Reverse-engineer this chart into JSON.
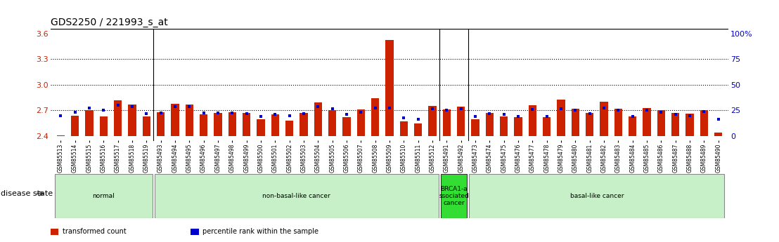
{
  "title": "GDS2250 / 221993_s_at",
  "samples": [
    "GSM85513",
    "GSM85514",
    "GSM85515",
    "GSM85516",
    "GSM85517",
    "GSM85518",
    "GSM85519",
    "GSM85493",
    "GSM85494",
    "GSM85495",
    "GSM85496",
    "GSM85497",
    "GSM85498",
    "GSM85499",
    "GSM85500",
    "GSM85501",
    "GSM85502",
    "GSM85503",
    "GSM85504",
    "GSM85505",
    "GSM85506",
    "GSM85507",
    "GSM85508",
    "GSM85509",
    "GSM85510",
    "GSM85511",
    "GSM85512",
    "GSM85491",
    "GSM85492",
    "GSM85473",
    "GSM85474",
    "GSM85475",
    "GSM85476",
    "GSM85477",
    "GSM85478",
    "GSM85479",
    "GSM85480",
    "GSM85481",
    "GSM85482",
    "GSM85483",
    "GSM85484",
    "GSM85485",
    "GSM85486",
    "GSM85487",
    "GSM85488",
    "GSM85489",
    "GSM85490"
  ],
  "transformed_count": [
    2.41,
    2.64,
    2.7,
    2.63,
    2.82,
    2.77,
    2.63,
    2.68,
    2.78,
    2.77,
    2.65,
    2.67,
    2.68,
    2.67,
    2.6,
    2.65,
    2.58,
    2.67,
    2.79,
    2.7,
    2.62,
    2.71,
    2.84,
    3.52,
    2.57,
    2.55,
    2.75,
    2.71,
    2.74,
    2.6,
    2.67,
    2.63,
    2.62,
    2.76,
    2.62,
    2.83,
    2.72,
    2.67,
    2.8,
    2.72,
    2.63,
    2.73,
    2.7,
    2.67,
    2.66,
    2.7,
    2.44
  ],
  "percentile_rank": [
    2.64,
    2.68,
    2.73,
    2.7,
    2.76,
    2.74,
    2.66,
    2.67,
    2.74,
    2.74,
    2.67,
    2.67,
    2.67,
    2.66,
    2.63,
    2.65,
    2.64,
    2.66,
    2.74,
    2.72,
    2.65,
    2.68,
    2.73,
    2.73,
    2.61,
    2.6,
    2.72,
    2.7,
    2.72,
    2.63,
    2.66,
    2.65,
    2.63,
    2.71,
    2.63,
    2.72,
    2.7,
    2.66,
    2.73,
    2.7,
    2.63,
    2.7,
    2.68,
    2.65,
    2.64,
    2.69,
    2.6
  ],
  "groups": [
    {
      "label": "normal",
      "start": 0,
      "end": 7,
      "color": "#c8f0c8",
      "edgecolor": "#888888"
    },
    {
      "label": "non-basal-like cancer",
      "start": 7,
      "end": 27,
      "color": "#c8f0c8",
      "edgecolor": "#888888"
    },
    {
      "label": "BRCA1-a\nssociated\ncancer",
      "start": 27,
      "end": 29,
      "color": "#33dd33",
      "edgecolor": "#333333"
    },
    {
      "label": "basal-like cancer",
      "start": 29,
      "end": 47,
      "color": "#c8f0c8",
      "edgecolor": "#888888"
    }
  ],
  "ylim": [
    2.35,
    3.65
  ],
  "ybase": 2.4,
  "yticks_left": [
    2.4,
    2.7,
    3.0,
    3.3,
    3.6
  ],
  "right_tick_positions": [
    2.4,
    2.7,
    3.0,
    3.3,
    3.6
  ],
  "ytick_right_labels": [
    "0",
    "25",
    "50",
    "75",
    "100%"
  ],
  "hlines": [
    2.7,
    3.0,
    3.3
  ],
  "bar_color": "#cc2200",
  "dot_color": "#0000cc",
  "bar_width": 0.55,
  "background_color": "#ffffff",
  "legend_items": [
    {
      "label": "transformed count",
      "color": "#cc2200"
    },
    {
      "label": "percentile rank within the sample",
      "color": "#0000cc"
    }
  ],
  "ylabel_left_color": "#cc2200",
  "ylabel_right_color": "#0000cc",
  "disease_state_label": "disease state",
  "group_dividers": [
    7,
    27,
    29
  ],
  "title_fontsize": 10,
  "tick_label_fontsize": 5.5,
  "group_label_fontsize": 6.5,
  "legend_fontsize": 7
}
